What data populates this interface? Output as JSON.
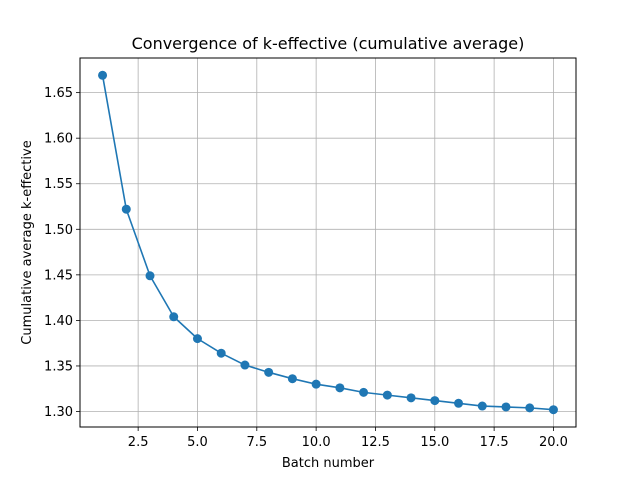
{
  "chart_data": {
    "type": "line",
    "title": "Convergence of k-effective (cumulative average)",
    "xlabel": "Batch number",
    "ylabel": "Cumulative average k-effective",
    "xlim": [
      0.05,
      20.95
    ],
    "ylim": [
      1.283,
      1.688
    ],
    "xticks": [
      2.5,
      5.0,
      7.5,
      10.0,
      12.5,
      15.0,
      17.5,
      20.0
    ],
    "xtick_labels": [
      "2.5",
      "5.0",
      "7.5",
      "10.0",
      "12.5",
      "15.0",
      "17.5",
      "20.0"
    ],
    "yticks": [
      1.3,
      1.35,
      1.4,
      1.45,
      1.5,
      1.55,
      1.6,
      1.65
    ],
    "ytick_labels": [
      "1.30",
      "1.35",
      "1.40",
      "1.45",
      "1.50",
      "1.55",
      "1.60",
      "1.65"
    ],
    "grid": true,
    "series": [
      {
        "color": "#1f77b4",
        "marker": "circle",
        "x": [
          1,
          2,
          3,
          4,
          5,
          6,
          7,
          8,
          9,
          10,
          11,
          12,
          13,
          14,
          15,
          16,
          17,
          18,
          19,
          20
        ],
        "y": [
          1.669,
          1.522,
          1.449,
          1.404,
          1.38,
          1.364,
          1.351,
          1.343,
          1.336,
          1.33,
          1.326,
          1.321,
          1.318,
          1.315,
          1.312,
          1.309,
          1.306,
          1.305,
          1.304,
          1.302
        ]
      }
    ]
  }
}
